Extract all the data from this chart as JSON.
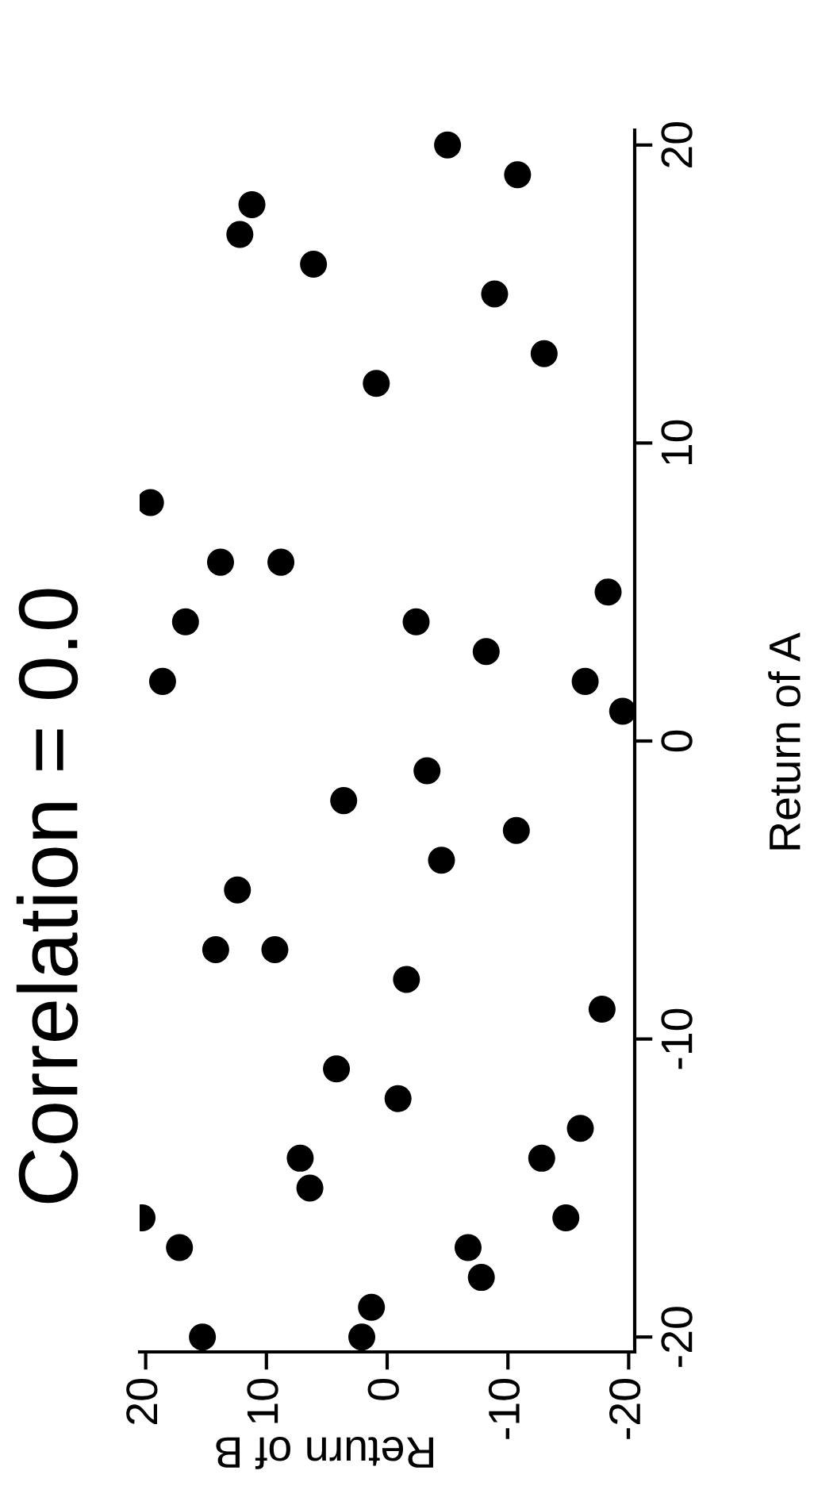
{
  "chart_data": {
    "type": "scatter",
    "title": "Correlation = 0.0",
    "xlabel": "Return of B",
    "ylabel": "Return of A",
    "x": [
      -5.0,
      -10.8,
      11.2,
      12.2,
      6.1,
      -8.9,
      -13.0,
      0.9,
      19.6,
      13.8,
      8.8,
      16.7,
      -2.4,
      -18.3,
      -8.2,
      18.6,
      -16.4,
      -19.5,
      -3.3,
      3.6,
      -10.7,
      -4.5,
      12.4,
      14.2,
      9.3,
      -1.6,
      -17.8,
      4.2,
      -0.9,
      -16.0,
      7.2,
      -12.8,
      6.4,
      20.3,
      -14.8,
      17.2,
      -6.7,
      -7.8,
      1.3,
      15.3,
      2.1
    ],
    "values": [
      20,
      19,
      18,
      17,
      16,
      15,
      13,
      12,
      8,
      6,
      6,
      4,
      4,
      5,
      3,
      2,
      2,
      1,
      -1,
      -2,
      -3,
      -4,
      -5,
      -7,
      -7,
      -8,
      -9,
      -11,
      -12,
      -13,
      -14,
      -14,
      -15,
      -16,
      -16,
      -17,
      -17,
      -18,
      -19,
      -20,
      -20
    ],
    "color": "#000000",
    "marker": "circle",
    "xlim": [
      20.5,
      -20.5
    ],
    "ylim": [
      -20.5,
      20.5
    ],
    "xticks": [
      20,
      10,
      0,
      -10,
      -20
    ],
    "yticks": [
      -20,
      -10,
      0,
      10,
      20
    ],
    "grid": false
  }
}
